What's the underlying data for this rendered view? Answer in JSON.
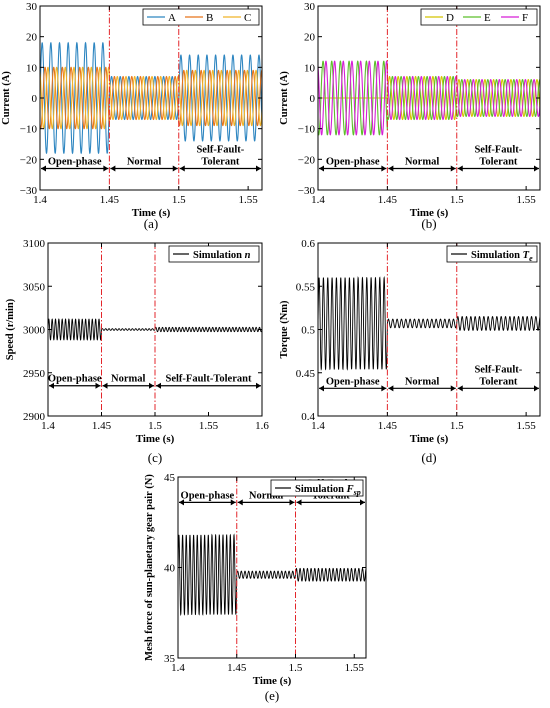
{
  "figure": {
    "background": "#ffffff",
    "axis_color": "#000000",
    "fault_line_color": "#e3262b",
    "arrow_color": "#000000"
  },
  "chart_data": [
    {
      "id": "a",
      "type": "line",
      "panel_label": "(a)",
      "xlabel": "Time (s)",
      "ylabel": "Current  (A)",
      "xlim": [
        1.4,
        1.56
      ],
      "ylim": [
        -30,
        30
      ],
      "xticks": [
        1.4,
        1.45,
        1.5,
        1.55
      ],
      "xtick_labels": [
        "1.4",
        "1.45",
        "1.5",
        "1.55"
      ],
      "yticks": [
        -30,
        -20,
        -10,
        0,
        10,
        20,
        30
      ],
      "ytick_labels": [
        "−30",
        "−20",
        "−10",
        "0",
        "10",
        "20",
        "30"
      ],
      "fault_lines_x": [
        1.45,
        1.5
      ],
      "regions": [
        {
          "label": "Open-phase",
          "x": [
            1.4,
            1.45
          ]
        },
        {
          "label": "Normal",
          "x": [
            1.45,
            1.5
          ]
        },
        {
          "label": "Self-Fault-Tolerant",
          "x": [
            1.5,
            1.56
          ]
        }
      ],
      "region_arrow_y": -23,
      "legend": {
        "position": "top-right",
        "orientation": "horizontal"
      },
      "series": [
        {
          "name": "A",
          "color": "#2e86c1",
          "kind": "sine",
          "frequency_hz": 160,
          "phase_deg": 0,
          "segments": [
            {
              "x": [
                1.4,
                1.45
              ],
              "amplitude": 18
            },
            {
              "x": [
                1.45,
                1.5
              ],
              "amplitude": 7
            },
            {
              "x": [
                1.5,
                1.56
              ],
              "amplitude": 14
            }
          ]
        },
        {
          "name": "B",
          "color": "#e8751a",
          "kind": "sine",
          "frequency_hz": 160,
          "phase_deg": -120,
          "segments": [
            {
              "x": [
                1.4,
                1.45
              ],
              "amplitude": 10
            },
            {
              "x": [
                1.45,
                1.5
              ],
              "amplitude": 7
            },
            {
              "x": [
                1.5,
                1.56
              ],
              "amplitude": 9
            }
          ]
        },
        {
          "name": "C",
          "color": "#f0b429",
          "kind": "sine",
          "frequency_hz": 160,
          "phase_deg": 120,
          "segments": [
            {
              "x": [
                1.4,
                1.45
              ],
              "amplitude": 10
            },
            {
              "x": [
                1.45,
                1.5
              ],
              "amplitude": 7
            },
            {
              "x": [
                1.5,
                1.56
              ],
              "amplitude": 9
            }
          ]
        }
      ]
    },
    {
      "id": "b",
      "type": "line",
      "panel_label": "(b)",
      "xlabel": "Time (s)",
      "ylabel": "Current  (A)",
      "xlim": [
        1.4,
        1.56
      ],
      "ylim": [
        -30,
        30
      ],
      "xticks": [
        1.4,
        1.45,
        1.5,
        1.55
      ],
      "xtick_labels": [
        "1.4",
        "1.45",
        "1.5",
        "1.55"
      ],
      "yticks": [
        -30,
        -20,
        -10,
        0,
        10,
        20,
        30
      ],
      "ytick_labels": [
        "−30",
        "−20",
        "−10",
        "0",
        "10",
        "20",
        "30"
      ],
      "fault_lines_x": [
        1.45,
        1.5
      ],
      "regions": [
        {
          "label": "Open-phase",
          "x": [
            1.4,
            1.45
          ]
        },
        {
          "label": "Normal",
          "x": [
            1.45,
            1.5
          ]
        },
        {
          "label": "Self-Fault-Tolerant",
          "x": [
            1.5,
            1.56
          ]
        }
      ],
      "region_arrow_y": -23,
      "legend": {
        "position": "top-right",
        "orientation": "horizontal"
      },
      "series": [
        {
          "name": "D",
          "color": "#d4c400",
          "kind": "sine",
          "frequency_hz": 160,
          "phase_deg": 0,
          "segments": [
            {
              "x": [
                1.4,
                1.45
              ],
              "amplitude": 0
            },
            {
              "x": [
                1.45,
                1.5
              ],
              "amplitude": 7
            },
            {
              "x": [
                1.5,
                1.56
              ],
              "amplitude": 6
            }
          ]
        },
        {
          "name": "E",
          "color": "#5cbf2a",
          "kind": "sine",
          "frequency_hz": 160,
          "phase_deg": -120,
          "segments": [
            {
              "x": [
                1.4,
                1.45
              ],
              "amplitude": 12
            },
            {
              "x": [
                1.45,
                1.5
              ],
              "amplitude": 7
            },
            {
              "x": [
                1.5,
                1.56
              ],
              "amplitude": 6
            }
          ]
        },
        {
          "name": "F",
          "color": "#d61fd6",
          "kind": "sine",
          "frequency_hz": 160,
          "phase_deg": 120,
          "segments": [
            {
              "x": [
                1.4,
                1.45
              ],
              "amplitude": 12
            },
            {
              "x": [
                1.45,
                1.5
              ],
              "amplitude": 7
            },
            {
              "x": [
                1.5,
                1.56
              ],
              "amplitude": 6
            }
          ]
        }
      ]
    },
    {
      "id": "c",
      "type": "line",
      "panel_label": "(c)",
      "xlabel": "Time (s)",
      "ylabel": "Speed  (r/min)",
      "xlim": [
        1.4,
        1.6
      ],
      "ylim": [
        2900,
        3100
      ],
      "xticks": [
        1.4,
        1.45,
        1.5,
        1.55,
        1.6
      ],
      "xtick_labels": [
        "1.4",
        "1.45",
        "1.5",
        "1.55",
        "1.6"
      ],
      "yticks": [
        2900,
        2950,
        3000,
        3050,
        3100
      ],
      "ytick_labels": [
        "2900",
        "2950",
        "3000",
        "3050",
        "3100"
      ],
      "fault_lines_x": [
        1.45,
        1.5
      ],
      "regions": [
        {
          "label": "Open-phase",
          "x": [
            1.4,
            1.45
          ]
        },
        {
          "label": "Normal",
          "x": [
            1.45,
            1.5
          ]
        },
        {
          "label": "Self-Fault-Tolerant",
          "x": [
            1.5,
            1.6
          ]
        }
      ],
      "region_arrow_y": 2935,
      "legend": {
        "position": "top-right",
        "orientation": "vertical",
        "prefix": "Simulation",
        "symbol": "n"
      },
      "series": [
        {
          "name": "Simulation n",
          "color": "#000000",
          "kind": "sine",
          "frequency_hz": 320,
          "offset": 3000,
          "segments": [
            {
              "x": [
                1.4,
                1.45
              ],
              "amplitude": 12
            },
            {
              "x": [
                1.45,
                1.5
              ],
              "amplitude": 1
            },
            {
              "x": [
                1.5,
                1.6
              ],
              "amplitude": 2.5
            }
          ]
        }
      ]
    },
    {
      "id": "d",
      "type": "line",
      "panel_label": "(d)",
      "xlabel": "Time (s)",
      "ylabel": "Torque  (Nm)",
      "xlim": [
        1.4,
        1.56
      ],
      "ylim": [
        0.4,
        0.6
      ],
      "xticks": [
        1.4,
        1.45,
        1.5,
        1.55
      ],
      "xtick_labels": [
        "1.4",
        "1.45",
        "1.5",
        "1.55"
      ],
      "yticks": [
        0.4,
        0.45,
        0.5,
        0.55,
        0.6
      ],
      "ytick_labels": [
        "0.4",
        "0.45",
        "0.5",
        "0.55",
        "0.6"
      ],
      "fault_lines_x": [
        1.45,
        1.5
      ],
      "regions": [
        {
          "label": "Open-phase",
          "x": [
            1.4,
            1.45
          ]
        },
        {
          "label": "Normal",
          "x": [
            1.45,
            1.5
          ]
        },
        {
          "label": "Self-Fault-Tolerant",
          "x": [
            1.5,
            1.56
          ]
        }
      ],
      "region_arrow_y": 0.432,
      "legend": {
        "position": "top-right",
        "orientation": "vertical",
        "prefix": "Simulation",
        "symbol": "T",
        "subscript": "e"
      },
      "series": [
        {
          "name": "Simulation Te",
          "color": "#000000",
          "kind": "sine",
          "frequency_hz": 320,
          "offset": 0.507,
          "segments": [
            {
              "x": [
                1.4,
                1.45
              ],
              "amplitude": 0.053
            },
            {
              "x": [
                1.45,
                1.5
              ],
              "amplitude": 0.005
            },
            {
              "x": [
                1.5,
                1.56
              ],
              "amplitude": 0.008
            }
          ]
        }
      ]
    },
    {
      "id": "e",
      "type": "line",
      "panel_label": "(e)",
      "xlabel": "Time (s)",
      "ylabel": "Mesh force of sun-planetary gear pair  (N)",
      "xlim": [
        1.4,
        1.56
      ],
      "ylim": [
        35,
        45
      ],
      "xticks": [
        1.4,
        1.45,
        1.5,
        1.55
      ],
      "xtick_labels": [
        "1.4",
        "1.45",
        "1.5",
        "1.55"
      ],
      "yticks": [
        35,
        40,
        45
      ],
      "ytick_labels": [
        "35",
        "40",
        "45"
      ],
      "fault_lines_x": [
        1.45,
        1.5
      ],
      "regions": [
        {
          "label": "Open-phase",
          "x": [
            1.4,
            1.45
          ]
        },
        {
          "label": "Normal",
          "x": [
            1.45,
            1.5
          ]
        },
        {
          "label": "Self-Fault-Tolerant",
          "x": [
            1.5,
            1.56
          ]
        }
      ],
      "region_arrow_y": 43.6,
      "legend": {
        "position": "top-right",
        "orientation": "vertical",
        "prefix": "Simulation",
        "symbol": "F",
        "subscript": "sp"
      },
      "series": [
        {
          "name": "Simulation Fsp",
          "color": "#000000",
          "kind": "sine",
          "frequency_hz": 320,
          "offset": 39.6,
          "segments": [
            {
              "x": [
                1.4,
                1.45
              ],
              "amplitude": 2.2
            },
            {
              "x": [
                1.45,
                1.5
              ],
              "amplitude": 0.2
            },
            {
              "x": [
                1.5,
                1.56
              ],
              "amplitude": 0.35
            }
          ]
        }
      ]
    }
  ]
}
